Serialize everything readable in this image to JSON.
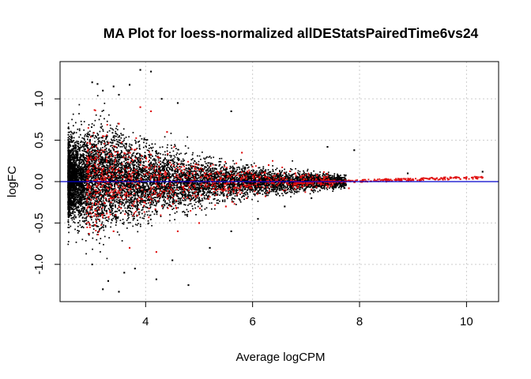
{
  "chart_data": {
    "type": "scatter",
    "title": "MA Plot for loess-normalized allDEStatsPairedTime6vs24",
    "xlabel": "Average logCPM",
    "ylabel": "logFC",
    "xlim": [
      2.4,
      10.6
    ],
    "ylim": [
      -1.45,
      1.45
    ],
    "x_ticks": [
      4,
      6,
      8,
      10
    ],
    "x_tick_labels": [
      "4",
      "6",
      "8",
      "10"
    ],
    "y_ticks": [
      -1.0,
      -0.5,
      0.0,
      0.5,
      1.0
    ],
    "y_tick_labels": [
      "-1.0",
      "-0.5",
      "0.0",
      "0.5",
      "1.0"
    ],
    "grid": true,
    "reference_line": {
      "y": 0,
      "color": "#0000cc"
    },
    "series": [
      {
        "color": "#000000",
        "points": [
          [
            3.0,
            1.2
          ],
          [
            3.1,
            1.18
          ],
          [
            3.4,
            1.15
          ],
          [
            3.7,
            1.17
          ],
          [
            3.9,
            1.35
          ],
          [
            4.1,
            1.33
          ],
          [
            3.2,
            1.1
          ],
          [
            3.5,
            1.05
          ],
          [
            4.3,
            1.0
          ],
          [
            4.6,
            0.95
          ],
          [
            5.6,
            0.85
          ],
          [
            7.4,
            0.42
          ],
          [
            7.9,
            0.38
          ],
          [
            8.9,
            0.1
          ],
          [
            10.3,
            0.12
          ],
          [
            3.2,
            -1.3
          ],
          [
            3.5,
            -1.33
          ],
          [
            3.3,
            -1.2
          ],
          [
            4.8,
            -1.25
          ],
          [
            4.2,
            -1.18
          ],
          [
            3.8,
            -1.05
          ],
          [
            3.6,
            -1.1
          ],
          [
            3.0,
            -1.0
          ],
          [
            4.5,
            -0.95
          ],
          [
            5.2,
            -0.8
          ],
          [
            5.6,
            -0.6
          ],
          [
            6.1,
            -0.45
          ],
          [
            6.6,
            -0.3
          ],
          [
            7.1,
            -0.2
          ],
          [
            2.6,
            -0.15
          ],
          [
            2.55,
            0.1
          ],
          [
            2.7,
            0.3
          ],
          [
            2.8,
            -0.4
          ],
          [
            2.9,
            0.55
          ]
        ]
      },
      {
        "color": "#e01010",
        "points": [
          [
            3.2,
            0.55
          ],
          [
            3.5,
            0.7
          ],
          [
            3.9,
            0.9
          ],
          [
            4.1,
            0.85
          ],
          [
            4.4,
            0.6
          ],
          [
            3.0,
            -0.3
          ],
          [
            3.4,
            -0.6
          ],
          [
            3.7,
            -0.8
          ],
          [
            4.2,
            -0.85
          ],
          [
            4.6,
            -0.6
          ],
          [
            5.0,
            -0.5
          ],
          [
            5.5,
            -0.3
          ],
          [
            5.8,
            0.35
          ],
          [
            6.3,
            0.2
          ],
          [
            6.8,
            0.1
          ],
          [
            7.2,
            0.08
          ],
          [
            7.6,
            0.0
          ],
          [
            7.8,
            -0.08
          ],
          [
            8.5,
            0.0
          ],
          [
            9.0,
            0.02
          ],
          [
            9.5,
            0.03
          ],
          [
            10.0,
            0.05
          ],
          [
            10.3,
            0.05
          ]
        ]
      }
    ]
  }
}
